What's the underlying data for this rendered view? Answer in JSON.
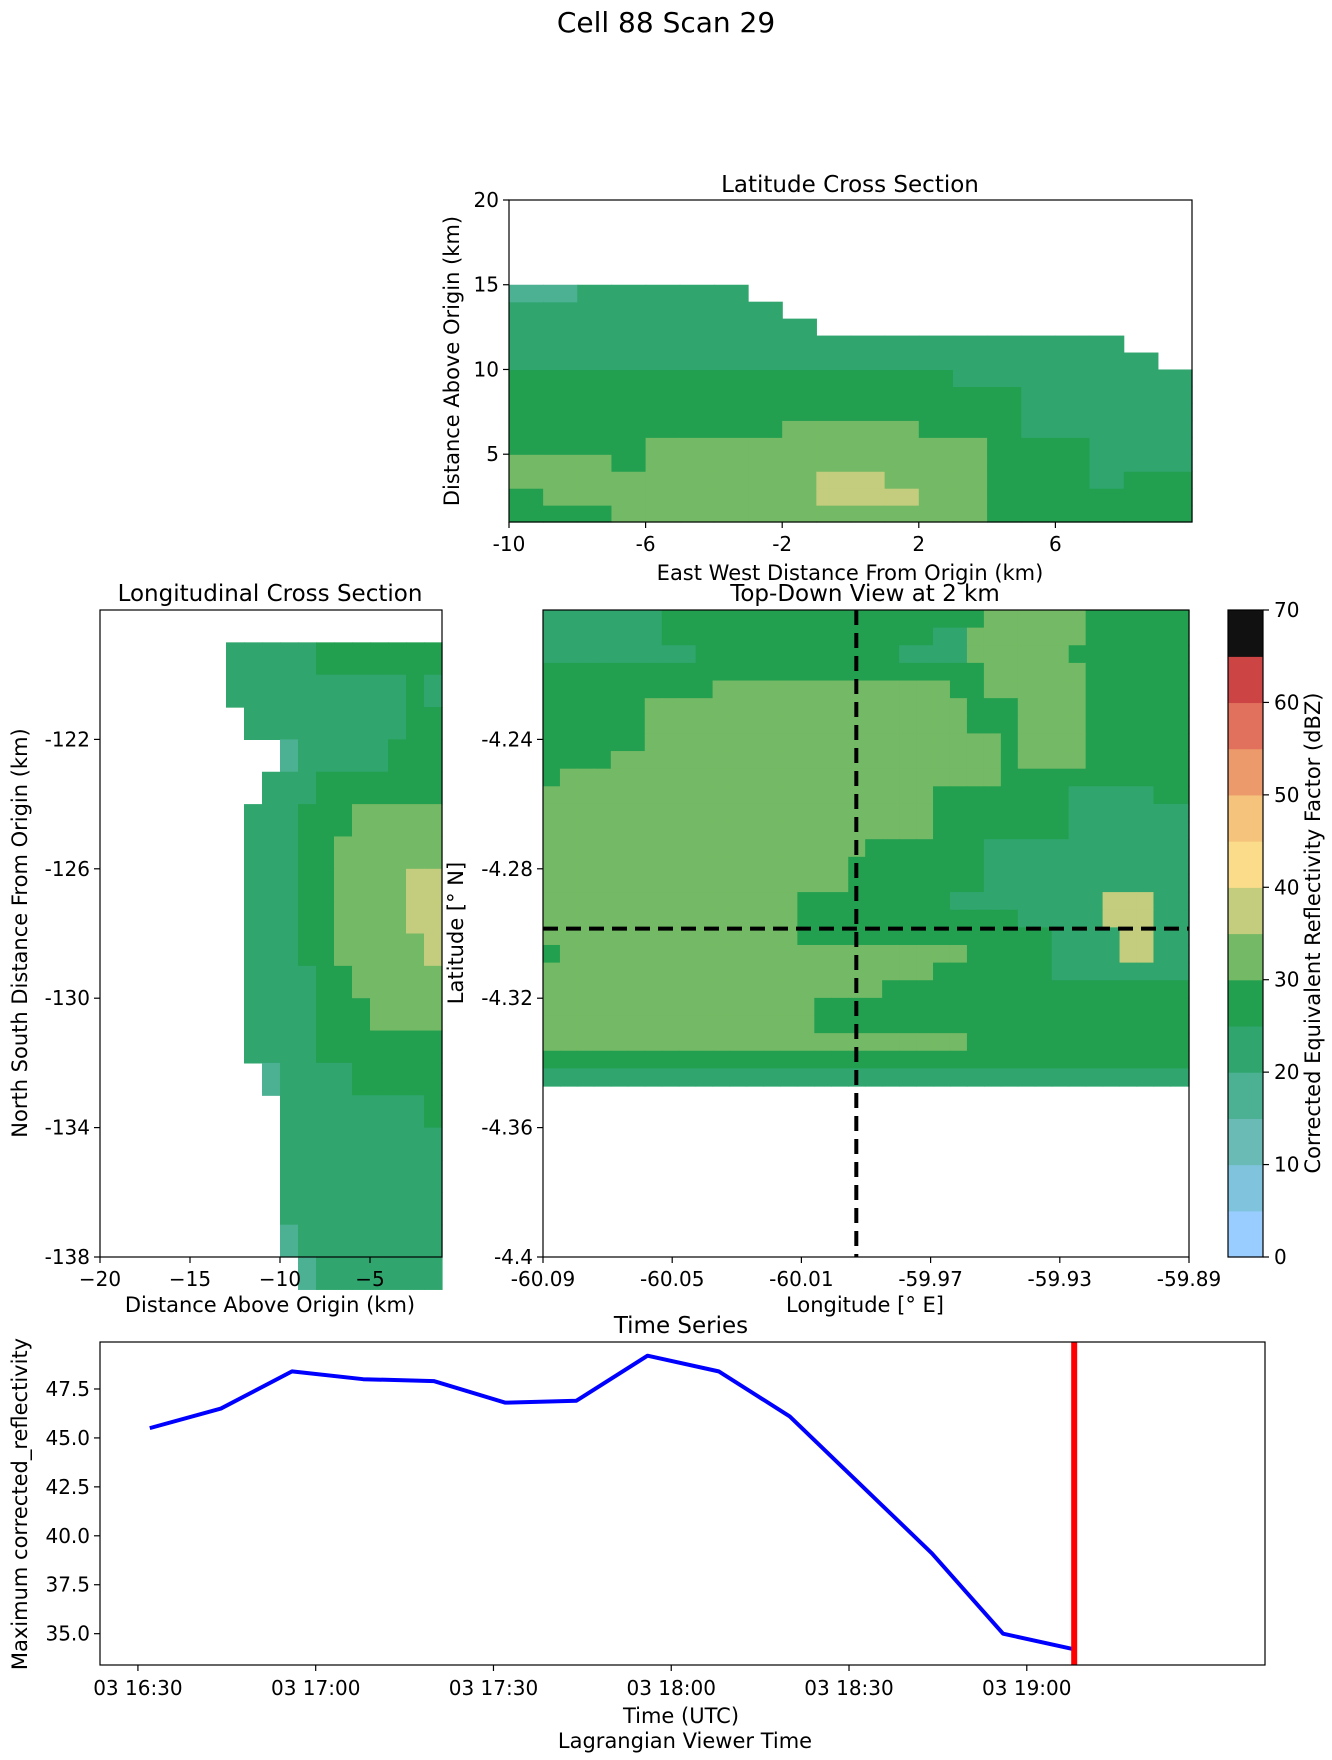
{
  "figure": {
    "title": "Cell 88 Scan 29"
  },
  "chart_data": [
    {
      "id": "latitude-cross-section",
      "type": "heatmap",
      "title": "Latitude Cross Section",
      "xlabel": "East West Distance From Origin (km)",
      "ylabel": "Distance Above Origin (km)",
      "xlim": [
        -10,
        10
      ],
      "ylim": [
        1,
        20
      ],
      "x_ticks": [
        -10,
        -6,
        -2,
        2,
        6
      ],
      "x_tick_labels": [
        "-10",
        "-6",
        "-2",
        "2",
        "6"
      ],
      "y_ticks": [
        5,
        10,
        15,
        20
      ],
      "y_tick_labels": [
        "5",
        "10",
        "15",
        "20"
      ],
      "cell_size": [
        1,
        1
      ],
      "columns": [
        {
          "x": -10,
          "v": [
            27,
            27,
            32,
            32,
            27,
            27,
            27,
            27,
            27,
            22,
            22,
            22,
            22,
            17
          ]
        },
        {
          "x": -9,
          "v": [
            27,
            32,
            32,
            32,
            27,
            27,
            27,
            27,
            27,
            22,
            22,
            22,
            22,
            17
          ]
        },
        {
          "x": -8,
          "v": [
            27,
            32,
            32,
            32,
            27,
            27,
            27,
            27,
            27,
            22,
            22,
            22,
            22,
            22
          ]
        },
        {
          "x": -7,
          "v": [
            32,
            32,
            32,
            27,
            27,
            27,
            27,
            27,
            27,
            22,
            22,
            22,
            22,
            22
          ]
        },
        {
          "x": -6,
          "v": [
            32,
            32,
            32,
            32,
            32,
            27,
            27,
            27,
            27,
            22,
            22,
            22,
            22,
            22
          ]
        },
        {
          "x": -5,
          "v": [
            32,
            32,
            32,
            32,
            32,
            27,
            27,
            27,
            27,
            22,
            22,
            22,
            22,
            22
          ]
        },
        {
          "x": -4,
          "v": [
            32,
            32,
            32,
            32,
            32,
            27,
            27,
            27,
            27,
            22,
            22,
            22,
            22,
            22
          ]
        },
        {
          "x": -3,
          "v": [
            32,
            32,
            32,
            32,
            32,
            27,
            27,
            27,
            27,
            22,
            22,
            22,
            22,
            null
          ]
        },
        {
          "x": -2,
          "v": [
            32,
            32,
            32,
            32,
            32,
            32,
            27,
            27,
            27,
            22,
            22,
            22,
            null,
            null
          ]
        },
        {
          "x": -1,
          "v": [
            32,
            37,
            37,
            32,
            32,
            32,
            27,
            27,
            27,
            22,
            22,
            null,
            null,
            null
          ]
        },
        {
          "x": 0,
          "v": [
            32,
            37,
            37,
            32,
            32,
            32,
            27,
            27,
            27,
            22,
            22,
            null,
            null,
            null
          ]
        },
        {
          "x": 1,
          "v": [
            32,
            37,
            32,
            32,
            32,
            32,
            27,
            27,
            27,
            22,
            22,
            null,
            null,
            null
          ]
        },
        {
          "x": 2,
          "v": [
            32,
            32,
            32,
            32,
            32,
            27,
            27,
            27,
            27,
            22,
            22,
            null,
            null,
            null
          ]
        },
        {
          "x": 3,
          "v": [
            32,
            32,
            32,
            32,
            32,
            27,
            27,
            27,
            22,
            22,
            22,
            null,
            null,
            null
          ]
        },
        {
          "x": 4,
          "v": [
            27,
            27,
            27,
            27,
            27,
            27,
            27,
            27,
            22,
            22,
            22,
            null,
            null,
            null
          ]
        },
        {
          "x": 5,
          "v": [
            27,
            27,
            27,
            27,
            27,
            22,
            22,
            22,
            22,
            22,
            22,
            null,
            null,
            null
          ]
        },
        {
          "x": 6,
          "v": [
            27,
            27,
            27,
            27,
            27,
            22,
            22,
            22,
            22,
            22,
            22,
            null,
            null,
            null
          ]
        },
        {
          "x": 7,
          "v": [
            27,
            27,
            22,
            22,
            22,
            22,
            22,
            22,
            22,
            22,
            22,
            null,
            null,
            null
          ]
        },
        {
          "x": 8,
          "v": [
            27,
            27,
            27,
            22,
            22,
            22,
            22,
            22,
            22,
            22,
            null,
            null,
            null,
            null
          ]
        },
        {
          "x": 9,
          "v": [
            27,
            27,
            27,
            22,
            22,
            22,
            22,
            22,
            22,
            null,
            null,
            null,
            null,
            null
          ]
        }
      ]
    },
    {
      "id": "longitudinal-cross-section",
      "type": "heatmap",
      "title": "Longitudinal Cross Section",
      "xlabel": "Distance Above Origin (km)",
      "ylabel": "North South Distance From Origin (km)",
      "xlim": [
        -20,
        -1
      ],
      "ylim": [
        -138,
        -118
      ],
      "x_ticks": [
        -20,
        -15,
        -10,
        -5
      ],
      "x_tick_labels": [
        "−20",
        "−15",
        "−10",
        "−5"
      ],
      "y_ticks": [
        -122,
        -126,
        -130,
        -134,
        -138
      ],
      "y_tick_labels": [
        "-122",
        "-126",
        "-130",
        "-134",
        "-138"
      ],
      "cell_size": [
        1,
        1
      ],
      "rows": [
        {
          "y": -119,
          "x_min": -13,
          "v": [
            22,
            22,
            22,
            22,
            22,
            27,
            27,
            27,
            27,
            27,
            27,
            27
          ]
        },
        {
          "y": -120,
          "x_min": -13,
          "v": [
            22,
            22,
            22,
            22,
            22,
            22,
            22,
            22,
            22,
            22,
            27,
            22
          ]
        },
        {
          "y": -121,
          "x_min": -12,
          "v": [
            22,
            22,
            22,
            22,
            22,
            22,
            22,
            22,
            22,
            27,
            27
          ]
        },
        {
          "y": -122,
          "x_min": -10,
          "v": [
            17,
            22,
            22,
            22,
            22,
            22,
            27,
            27,
            27
          ]
        },
        {
          "y": -123,
          "x_min": -11,
          "v": [
            22,
            22,
            22,
            27,
            27,
            27,
            27,
            27,
            27,
            27
          ]
        },
        {
          "y": -124,
          "x_min": -12,
          "v": [
            22,
            22,
            22,
            27,
            27,
            27,
            32,
            32,
            32,
            32,
            32
          ]
        },
        {
          "y": -125,
          "x_min": -12,
          "v": [
            22,
            22,
            22,
            27,
            27,
            32,
            32,
            32,
            32,
            32,
            32
          ]
        },
        {
          "y": -126,
          "x_min": -12,
          "v": [
            22,
            22,
            22,
            27,
            27,
            32,
            32,
            32,
            32,
            37,
            37
          ]
        },
        {
          "y": -127,
          "x_min": -12,
          "v": [
            22,
            22,
            22,
            27,
            27,
            32,
            32,
            32,
            32,
            37,
            37
          ]
        },
        {
          "y": -128,
          "x_min": -12,
          "v": [
            22,
            22,
            22,
            27,
            27,
            32,
            32,
            32,
            32,
            32,
            37
          ]
        },
        {
          "y": -129,
          "x_min": -12,
          "v": [
            22,
            22,
            22,
            22,
            27,
            27,
            32,
            32,
            32,
            32,
            32
          ]
        },
        {
          "y": -130,
          "x_min": -12,
          "v": [
            22,
            22,
            22,
            22,
            27,
            27,
            27,
            32,
            32,
            32,
            32
          ]
        },
        {
          "y": -131,
          "x_min": -12,
          "v": [
            22,
            22,
            22,
            22,
            27,
            27,
            27,
            27,
            27,
            27,
            27
          ]
        },
        {
          "y": -132,
          "x_min": -11,
          "v": [
            17,
            22,
            22,
            22,
            22,
            27,
            27,
            27,
            27,
            27
          ]
        },
        {
          "y": -133,
          "x_min": -10,
          "v": [
            22,
            22,
            22,
            22,
            22,
            22,
            22,
            22,
            27
          ]
        },
        {
          "y": -134,
          "x_min": -10,
          "v": [
            22,
            22,
            22,
            22,
            22,
            22,
            22,
            22,
            22
          ]
        },
        {
          "y": -135,
          "x_min": -10,
          "v": [
            22,
            22,
            22,
            22,
            22,
            22,
            22,
            22,
            22
          ]
        },
        {
          "y": -136,
          "x_min": -10,
          "v": [
            22,
            22,
            22,
            22,
            22,
            22,
            22,
            22,
            22
          ]
        },
        {
          "y": -137,
          "x_min": -10,
          "v": [
            17,
            22,
            22,
            22,
            22,
            22,
            22,
            22,
            22
          ]
        },
        {
          "y": -138,
          "x_min": -9,
          "v": [
            17,
            22,
            22,
            22,
            22,
            22,
            22,
            22
          ]
        }
      ]
    },
    {
      "id": "top-down-view",
      "type": "heatmap",
      "title": "Top-Down View at 2 km",
      "xlabel": "Longitude [° E]",
      "ylabel": "Latitude [° N]",
      "xlim": [
        -60.09,
        -59.89
      ],
      "ylim": [
        -4.4,
        -4.2
      ],
      "x_ticks": [
        -60.09,
        -60.05,
        -60.01,
        -59.97,
        -59.93,
        -59.89
      ],
      "x_tick_labels": [
        "-60.09",
        "-60.05",
        "-60.01",
        "-59.97",
        "-59.93",
        "-59.89"
      ],
      "y_ticks": [
        -4.24,
        -4.28,
        -4.32,
        -4.36,
        -4.4
      ],
      "y_tick_labels": [
        "-4.24",
        "-4.28",
        "-4.32",
        "-4.36",
        "-4.4"
      ],
      "grid_origin": [
        -60.09,
        -4.2
      ],
      "grid_step": [
        0.00525,
        0.00545
      ],
      "rows_top_to_bottom": [
        "AAAAAAABBBBBBBBBBBBBBBBBBBCCCCCCBBBBBBBBBBBBBBBBB",
        "AAAAAAABBBBBBBBBBBBBBBBAACCCCCCCBBBBBBBBBBBBBBBBB",
        "AAAAAAAAABBBBBBBBBBBBAAAACCCCCCBBBBBBBBBBBBBBBBBB",
        "BBBBBBBBBBBBBBBBBBBBBBBBBBCCCCCCBBBBBBBBBBBBBBBBB",
        "BBBBBBBBBBCCCCCCCCCCCCCCBBCCCCCCBBBBBBBBBBBBBBBBB",
        "BBBBBBCCCCCCCCCCCCCCCCCCCBBBCCCCBBBBBBBBBBBBBBBBB",
        "BBBBBBCCCCCCCCCCCCCCCCCCCBBBCCCCBBBBBBBBBBBBBBBBB",
        "BBBBBBCCCCCCCCCCCCCCCCCCCCCBCCCCBBBBBBBBBBBBBBBBB",
        "BBBBCCCCCCCCCCCCCCCCCCCCCCCBCCCCBBBBBBBBBBBBBBBBB",
        "BCCCCCCCCCCCCCCCCCCCCCCCCCCBBBBBBBBBBBBBBBBBBBBBB",
        "CCCCCCCCCCCCCCCCCCCCCCCBBBBBBBBAAAAABBBBBBBBBBBBB",
        "CCCCCCCCCCCCCCCCCCCCCCCBBBBBBBBAAAAAAAAABBBBBBBBB",
        "CCCCCCCCCCCCCCCCCCCCCCCBBBBBBBBAAAAAAAABBBBBBBBBB",
        "CCCCCCCCCCCCCCCCCCCBBBBBBBAAAAAAAAAAAAABBBBBBBBBB",
        "CCCCCCCCCCCCCCCCCCBBBBBBBBAAAAAAAAAAAAABBBBBBBBBB",
        "CCCCCCCCCCCCCCCCCCBBBBBBBBAAAAAAAAAAAAABBBBBBBBBB",
        "CCCCCCCCCCCCCCCBBBBBBBBBAAAAAAAAADDDAAABBBBBBBBBB",
        "CCCCCCCCCCCCCCCBBBBBBBBBBBBBAAAAADDDAAABBBBBBBBBB",
        "CCCCCCCCCCCCCCCBBBBBBBBBBBBBBBAAAADDAAAABBBBBBBBB",
        "BCCCCCCCCCCCCCCCCCCCCCCCCBBBBBAAAADDAAAABBBBBBBBB",
        "CCCCCCCCCCCCCCCCCCCCCCCBBBBBBBAAAAAAAAAABBBBBBBBB",
        "CCCCCCCCCCCCCCCCCCCCBBBBBBBBBBBBBBBBBBBBBBBBBBBBB",
        "CCCCCCCCCCCCCCCCBBBBBBBBBBBBBBBBBBBBBBBBBBBBBBBBB",
        "CCCCCCCCCCCCCCCCBBBBBBBBBBBBBBBBBBBBBBBBBBBBBBBBB",
        "CCCCCCCCCCCCCCCCCCCCCCCCCBBBBBBBBBBBBBBBBBBBBBBBB",
        "BBBBBBBBBBBBBBBBBBBBBBBBBBBBBBBBBBBBBBBBBBBBBBBBB",
        "AAAAAAAAAAAAAAAAAAAAAAAAAAAAAAAAAAAAAAAAAAAAAAAAA"
      ],
      "legend_of_codes": {
        "A": 22,
        "B": 27,
        "C": 32,
        "D": 37
      },
      "crosshair": {
        "longitude": -59.993,
        "latitude": -4.2985
      }
    },
    {
      "id": "time-series",
      "type": "line",
      "title": "Time Series",
      "xlabel": "Time (UTC)",
      "ylabel": "Maximum corrected_reflectivity",
      "x_tick_labels": [
        "03 16:30",
        "03 17:00",
        "03 17:30",
        "03 18:00",
        "03 18:30",
        "03 19:00"
      ],
      "y_ticks": [
        35.0,
        37.5,
        40.0,
        42.5,
        45.0,
        47.5
      ],
      "y_tick_labels": [
        "35.0",
        "37.5",
        "40.0",
        "42.5",
        "45.0",
        "47.5"
      ],
      "ylim": [
        33.4,
        49.9
      ],
      "x": [
        "16:32",
        "16:44",
        "16:56",
        "17:08",
        "17:20",
        "17:32",
        "17:44",
        "17:56",
        "18:08",
        "18:20",
        "18:32",
        "18:44",
        "18:56",
        "19:08"
      ],
      "series": [
        {
          "values": [
            45.5,
            46.5,
            48.4,
            48.0,
            47.9,
            46.8,
            46.9,
            49.2,
            48.4,
            46.1,
            42.6,
            39.1,
            35.0,
            34.2
          ],
          "color": "#0000ff"
        }
      ],
      "current_time_marker": "19:08",
      "marker_color": "#ff0000"
    }
  ],
  "colorbar": {
    "label": "Corrected Equivalent Reflectivity Factor (dBZ)",
    "min": 0,
    "max": 70,
    "ticks": [
      "0",
      "10",
      "20",
      "30",
      "40",
      "50",
      "60",
      "70"
    ],
    "colors": [
      "#99ccff",
      "#7fc4dc",
      "#6abab6",
      "#4cb092",
      "#30a66e",
      "#22a050",
      "#74b965",
      "#c3cd7d",
      "#fbdc8b",
      "#f5c37c",
      "#ec9a6b",
      "#e1705c",
      "#cc4444",
      "#6e2626"
    ]
  },
  "lagrangian": {
    "label": "Lagrangian Viewer Time"
  }
}
